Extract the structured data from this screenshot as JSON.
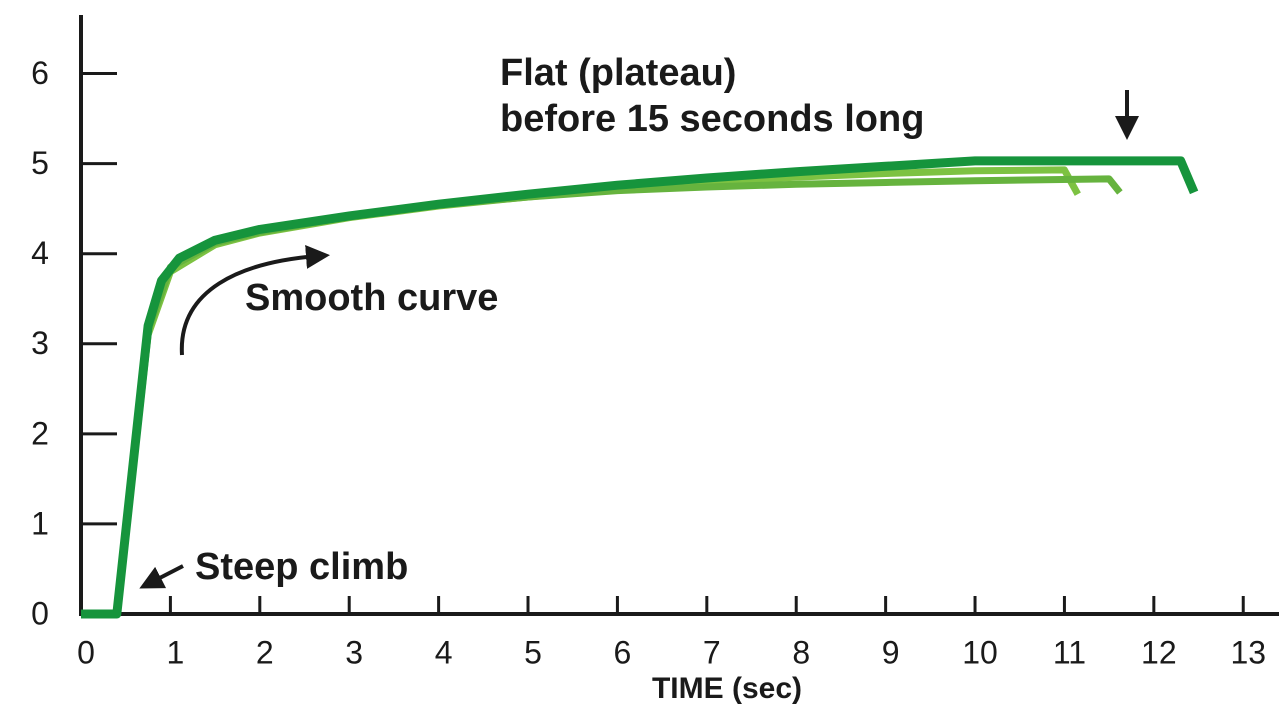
{
  "chart_data": {
    "type": "line",
    "annotations": [
      "Flat (plateau)",
      "before 15 seconds long",
      "Smooth curve",
      "Steep climb"
    ],
    "x_label": "TIME (sec)",
    "xlim": [
      0,
      13.4
    ],
    "ylim": [
      0,
      6.65
    ],
    "xticks": [
      0,
      1,
      2,
      3,
      4,
      5,
      6,
      7,
      8,
      9,
      10,
      11,
      12,
      13
    ],
    "yticks": [
      0,
      1,
      2,
      3,
      4,
      5,
      6
    ],
    "series": [
      {
        "color": "#7dc242",
        "x": [
          0,
          0.4,
          0.75,
          1,
          1.5,
          2,
          3,
          4,
          5,
          6,
          7,
          8,
          9,
          10,
          11,
          11.15
        ],
        "values": [
          0,
          0,
          3.1,
          3.8,
          4.1,
          4.23,
          4.4,
          4.53,
          4.63,
          4.72,
          4.79,
          4.85,
          4.89,
          4.92,
          4.93,
          4.66
        ]
      },
      {
        "color": "#66b33e",
        "x": [
          0,
          0.4,
          0.75,
          1,
          1.5,
          2,
          3,
          4,
          5,
          6,
          7,
          8,
          9,
          10,
          11.5,
          11.62
        ],
        "values": [
          0,
          0,
          3.15,
          3.85,
          4.12,
          4.24,
          4.41,
          4.54,
          4.63,
          4.7,
          4.74,
          4.77,
          4.79,
          4.81,
          4.83,
          4.68
        ]
      },
      {
        "color": "#16943c",
        "x": [
          0,
          0.4,
          0.75,
          0.9,
          1.1,
          1.5,
          2,
          3,
          4,
          5,
          6,
          7,
          8,
          9,
          10,
          12.3,
          12.45
        ],
        "values": [
          0,
          0,
          3.2,
          3.7,
          3.95,
          4.15,
          4.27,
          4.42,
          4.55,
          4.66,
          4.76,
          4.84,
          4.91,
          4.97,
          5.03,
          5.03,
          4.68
        ]
      }
    ]
  }
}
